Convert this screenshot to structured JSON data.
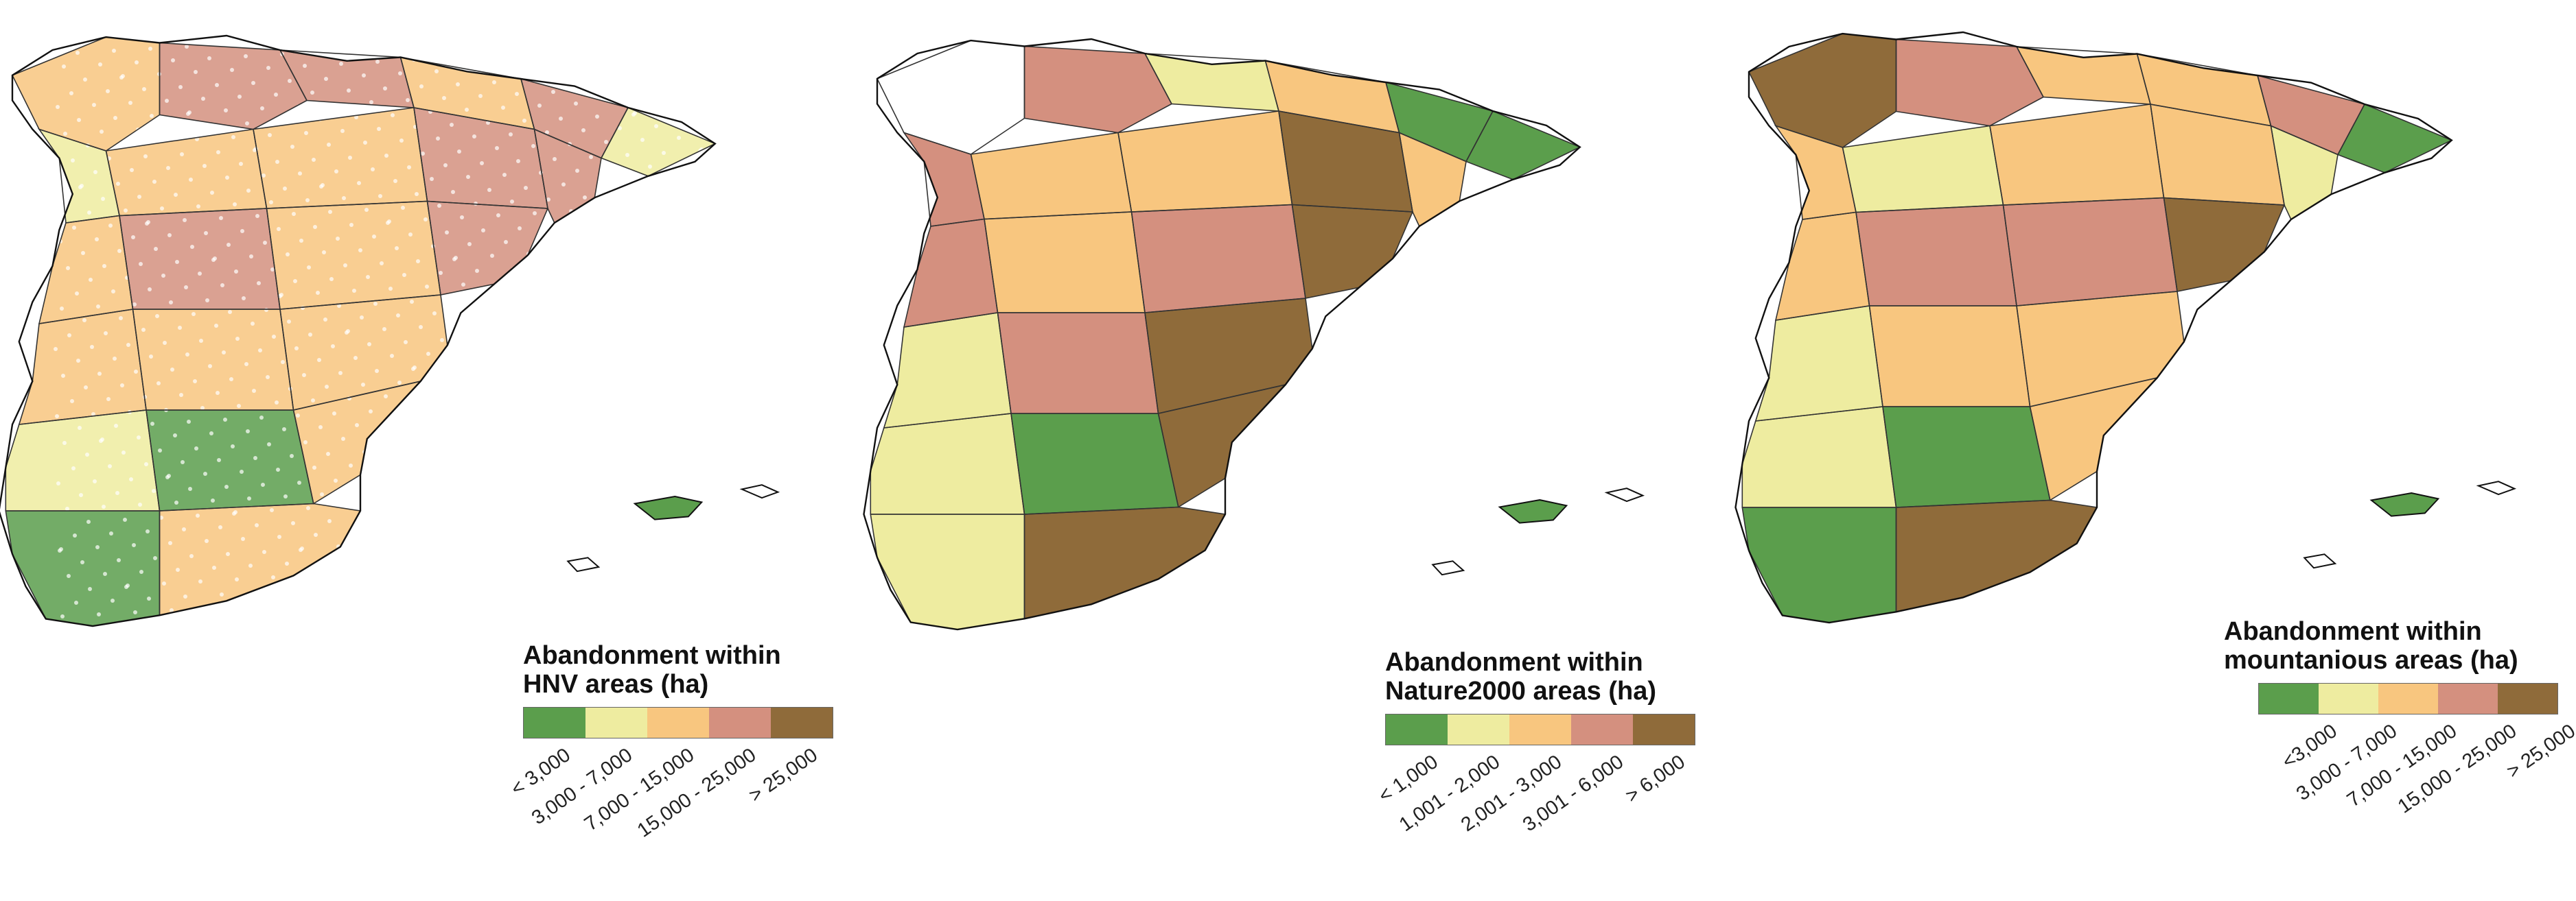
{
  "panels": [
    {
      "id": "hnv",
      "legend": {
        "title_lines": [
          "Abandonment within",
          "HNV areas (ha)"
        ],
        "classes": [
          "< 3,000",
          "3,000 - 7,000",
          "7,000 - 15,000",
          "15,000 - 25,000",
          "> 25,000"
        ]
      }
    },
    {
      "id": "natura2000",
      "legend": {
        "title_lines": [
          "Abandonment within",
          "Nature2000 areas (ha)"
        ],
        "classes": [
          "< 1,000",
          "1,001 - 2,000",
          "2,001 - 3,000",
          "3,001 - 6,000",
          "> 6,000"
        ]
      }
    },
    {
      "id": "mountainous",
      "legend": {
        "title_lines": [
          "Abandonment within",
          "mountanious areas (ha)"
        ],
        "classes": [
          "<3,000",
          "3,000 - 7,000",
          "7,000 - 15,000",
          "15,000 - 25,000",
          "> 25,000"
        ]
      }
    }
  ],
  "class_colors": [
    "#5b9e4c",
    "#eeeca0",
    "#f8c67f",
    "#d4907f",
    "#8f6b3a"
  ]
}
